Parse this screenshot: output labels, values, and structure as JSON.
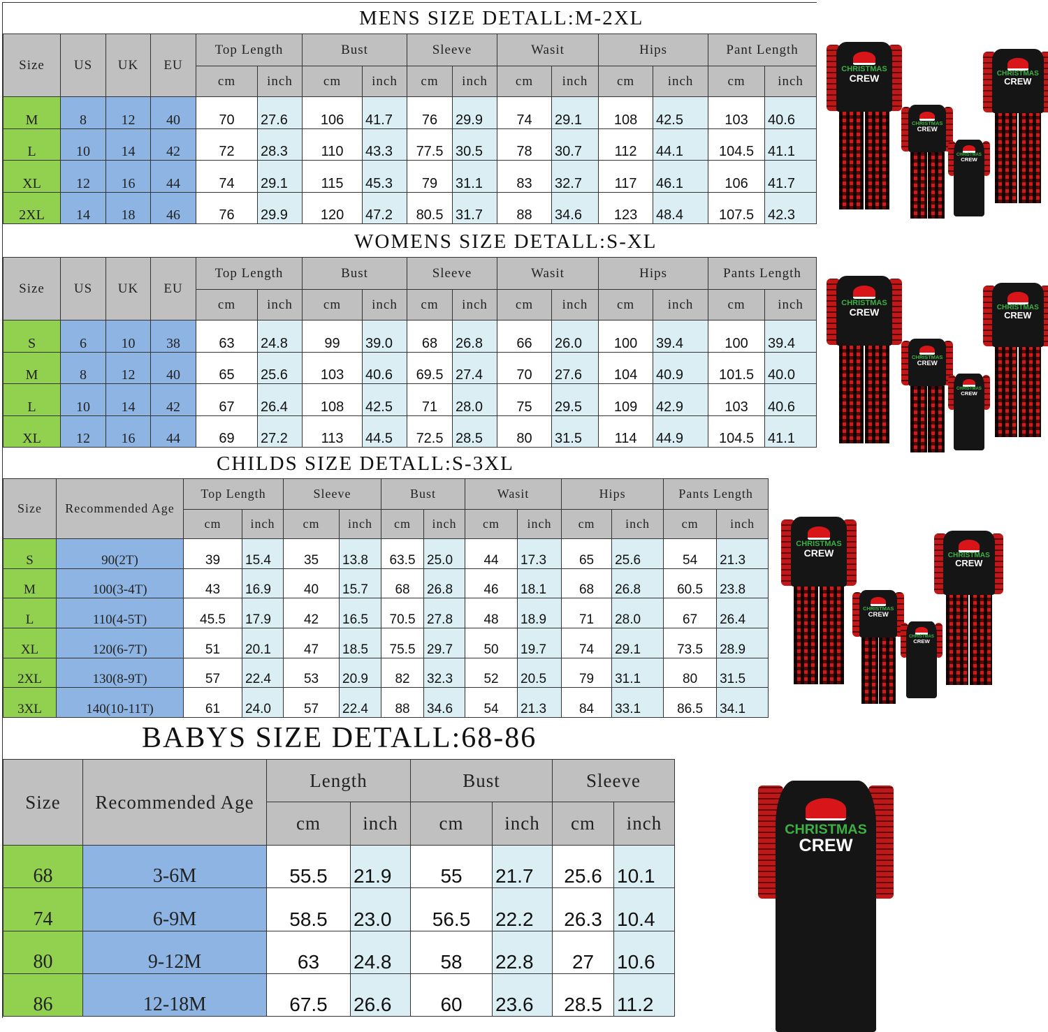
{
  "colors": {
    "size": "#92d050",
    "blue": "#8db4e2",
    "header": "#c0c0c0",
    "inch": "#daeef3"
  },
  "product_logo_text": [
    "CHRISTMAS",
    "CREW"
  ],
  "mens": {
    "title": "MENS SIZE DETALL:M-2XL",
    "lead_headers": [
      "Size",
      "US",
      "UK",
      "EU"
    ],
    "groups": [
      "Top Length",
      "Bust",
      "Sleeve",
      "Wasit",
      "Hips",
      "Pant Length"
    ],
    "units": [
      "cm",
      "inch"
    ],
    "rows": [
      [
        "M",
        "8",
        "12",
        "40",
        "70",
        "27.6",
        "106",
        "41.7",
        "76",
        "29.9",
        "74",
        "29.1",
        "108",
        "42.5",
        "103",
        "40.6"
      ],
      [
        "L",
        "10",
        "14",
        "42",
        "72",
        "28.3",
        "110",
        "43.3",
        "77.5",
        "30.5",
        "78",
        "30.7",
        "112",
        "44.1",
        "104.5",
        "41.1"
      ],
      [
        "XL",
        "12",
        "16",
        "44",
        "74",
        "29.1",
        "115",
        "45.3",
        "79",
        "31.1",
        "83",
        "32.7",
        "117",
        "46.1",
        "106",
        "41.7"
      ],
      [
        "2XL",
        "14",
        "18",
        "46",
        "76",
        "29.9",
        "120",
        "47.2",
        "80.5",
        "31.7",
        "88",
        "34.6",
        "123",
        "48.4",
        "107.5",
        "42.3"
      ]
    ]
  },
  "womens": {
    "title": "WOMENS SIZE DETALL:S-XL",
    "lead_headers": [
      "Size",
      "US",
      "UK",
      "EU"
    ],
    "groups": [
      "Top Length",
      "Bust",
      "Sleeve",
      "Wasit",
      "Hips",
      "Pants Length"
    ],
    "units": [
      "cm",
      "inch"
    ],
    "rows": [
      [
        "S",
        "6",
        "10",
        "38",
        "63",
        "24.8",
        "99",
        "39.0",
        "68",
        "26.8",
        "66",
        "26.0",
        "100",
        "39.4",
        "100",
        "39.4"
      ],
      [
        "M",
        "8",
        "12",
        "40",
        "65",
        "25.6",
        "103",
        "40.6",
        "69.5",
        "27.4",
        "70",
        "27.6",
        "104",
        "40.9",
        "101.5",
        "40.0"
      ],
      [
        "L",
        "10",
        "14",
        "42",
        "67",
        "26.4",
        "108",
        "42.5",
        "71",
        "28.0",
        "75",
        "29.5",
        "109",
        "42.9",
        "103",
        "40.6"
      ],
      [
        "XL",
        "12",
        "16",
        "44",
        "69",
        "27.2",
        "113",
        "44.5",
        "72.5",
        "28.5",
        "80",
        "31.5",
        "114",
        "44.9",
        "104.5",
        "41.1"
      ]
    ]
  },
  "childs": {
    "title": "CHILDS SIZE DETALL:S-3XL",
    "lead_headers": [
      "Size",
      "Recommended Age"
    ],
    "groups": [
      "Top Length",
      "Sleeve",
      "Bust",
      "Wasit",
      "Hips",
      "Pants Length"
    ],
    "units": [
      "cm",
      "inch"
    ],
    "rows": [
      [
        "S",
        "90(2T)",
        "39",
        "15.4",
        "35",
        "13.8",
        "63.5",
        "25.0",
        "44",
        "17.3",
        "65",
        "25.6",
        "54",
        "21.3"
      ],
      [
        "M",
        "100(3-4T)",
        "43",
        "16.9",
        "40",
        "15.7",
        "68",
        "26.8",
        "46",
        "18.1",
        "68",
        "26.8",
        "60.5",
        "23.8"
      ],
      [
        "L",
        "110(4-5T)",
        "45.5",
        "17.9",
        "42",
        "16.5",
        "70.5",
        "27.8",
        "48",
        "18.9",
        "71",
        "28.0",
        "67",
        "26.4"
      ],
      [
        "XL",
        "120(6-7T)",
        "51",
        "20.1",
        "47",
        "18.5",
        "75.5",
        "29.7",
        "50",
        "19.7",
        "74",
        "29.1",
        "73.5",
        "28.9"
      ],
      [
        "2XL",
        "130(8-9T)",
        "57",
        "22.4",
        "53",
        "20.9",
        "82",
        "32.3",
        "52",
        "20.5",
        "79",
        "31.1",
        "80",
        "31.5"
      ],
      [
        "3XL",
        "140(10-11T)",
        "61",
        "24.0",
        "57",
        "22.4",
        "88",
        "34.6",
        "54",
        "21.3",
        "84",
        "33.1",
        "86.5",
        "34.1"
      ]
    ]
  },
  "babys": {
    "title": "BABYS SIZE DETALL:68-86",
    "lead_headers": [
      "Size",
      "Recommended Age"
    ],
    "groups": [
      "Length",
      "Bust",
      "Sleeve"
    ],
    "units": [
      "cm",
      "inch"
    ],
    "rows": [
      [
        "68",
        "3-6M",
        "55.5",
        "21.9",
        "55",
        "21.7",
        "25.6",
        "10.1"
      ],
      [
        "74",
        "6-9M",
        "58.5",
        "23.0",
        "56.5",
        "22.2",
        "26.3",
        "10.4"
      ],
      [
        "80",
        "9-12M",
        "63",
        "24.8",
        "58",
        "22.8",
        "27",
        "10.6"
      ],
      [
        "86",
        "12-18M",
        "67.5",
        "26.6",
        "60",
        "23.6",
        "28.5",
        "11.2"
      ]
    ]
  }
}
